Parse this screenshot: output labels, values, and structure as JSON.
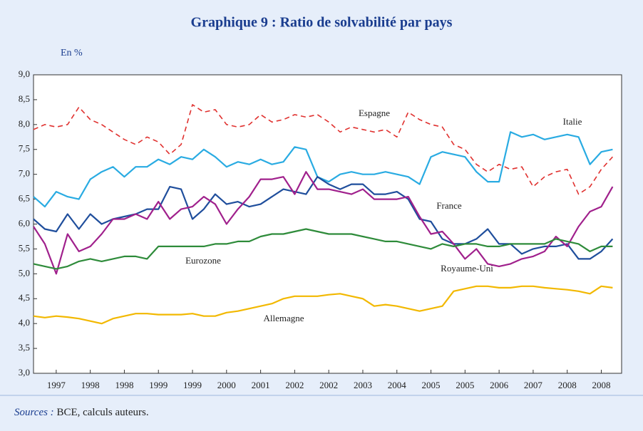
{
  "chart_data": {
    "type": "line",
    "title": "Graphique 9 : Ratio de solvabilité par pays",
    "unit_label": "En %",
    "source": {
      "label": "Sources :",
      "text": "BCE, calculs auteurs."
    },
    "categories": [
      null,
      null,
      "1997",
      null,
      null,
      "1998",
      null,
      null,
      "1998",
      null,
      null,
      "1999",
      null,
      null,
      "1999",
      null,
      null,
      "2000",
      null,
      null,
      "2001",
      null,
      null,
      "2002",
      null,
      null,
      "2002",
      null,
      null,
      "2003",
      null,
      null,
      "2004",
      null,
      null,
      "2005",
      null,
      null,
      "2005",
      null,
      null,
      "2006",
      null,
      null,
      "2007",
      null,
      null,
      "2008",
      null,
      null,
      "2008",
      null
    ],
    "series": [
      {
        "name": "Espagne",
        "color": "#e0312f",
        "line_style": "dashed",
        "values": [
          7.9,
          8.0,
          7.95,
          8.0,
          8.35,
          8.1,
          8.0,
          7.85,
          7.7,
          7.6,
          7.75,
          7.65,
          7.4,
          7.6,
          8.4,
          8.25,
          8.3,
          8.0,
          7.95,
          8.0,
          8.2,
          8.05,
          8.1,
          8.2,
          8.15,
          8.2,
          8.05,
          7.85,
          7.95,
          7.9,
          7.85,
          7.9,
          7.75,
          8.25,
          8.1,
          8.0,
          7.95,
          7.6,
          7.5,
          7.2,
          7.05,
          7.2,
          7.1,
          7.15,
          6.75,
          6.95,
          7.05,
          7.1,
          6.6,
          6.75,
          7.1,
          7.35
        ]
      },
      {
        "name": "Italie",
        "color": "#29abe2",
        "line_style": "solid",
        "values": [
          6.55,
          6.35,
          6.65,
          6.55,
          6.5,
          6.9,
          7.05,
          7.15,
          6.95,
          7.15,
          7.15,
          7.3,
          7.2,
          7.35,
          7.3,
          7.5,
          7.35,
          7.15,
          7.25,
          7.2,
          7.3,
          7.2,
          7.25,
          7.55,
          7.5,
          6.95,
          6.85,
          7.0,
          7.05,
          7.0,
          7.0,
          7.05,
          7.0,
          6.95,
          6.8,
          7.35,
          7.45,
          7.4,
          7.35,
          7.05,
          6.85,
          6.85,
          7.85,
          7.75,
          7.8,
          7.7,
          7.75,
          7.8,
          7.75,
          7.2,
          7.45,
          7.5
        ]
      },
      {
        "name": "France",
        "color": "#1f4e9c",
        "line_style": "solid",
        "values": [
          6.1,
          5.9,
          5.85,
          6.2,
          5.9,
          6.2,
          6.0,
          6.1,
          6.15,
          6.2,
          6.3,
          6.3,
          6.75,
          6.7,
          6.1,
          6.3,
          6.6,
          6.4,
          6.45,
          6.35,
          6.4,
          6.55,
          6.7,
          6.65,
          6.6,
          6.95,
          6.8,
          6.7,
          6.8,
          6.8,
          6.6,
          6.6,
          6.65,
          6.5,
          6.1,
          6.05,
          5.7,
          5.6,
          5.6,
          5.7,
          5.9,
          5.6,
          5.6,
          5.4,
          5.5,
          5.55,
          5.55,
          5.6,
          5.3,
          5.3,
          5.45,
          5.7
        ]
      },
      {
        "name": "Royaume-Uni",
        "color": "#a0208c",
        "line_style": "solid",
        "values": [
          5.95,
          5.6,
          5.0,
          5.8,
          5.45,
          5.55,
          5.8,
          6.1,
          6.1,
          6.2,
          6.1,
          6.45,
          6.1,
          6.3,
          6.35,
          6.55,
          6.4,
          6.0,
          6.3,
          6.55,
          6.9,
          6.9,
          6.95,
          6.6,
          7.05,
          6.7,
          6.7,
          6.65,
          6.6,
          6.7,
          6.5,
          6.5,
          6.5,
          6.55,
          6.15,
          5.8,
          5.85,
          5.6,
          5.3,
          5.5,
          5.2,
          5.15,
          5.2,
          5.3,
          5.35,
          5.45,
          5.75,
          5.55,
          5.95,
          6.25,
          6.35,
          6.75
        ]
      },
      {
        "name": "Eurozone",
        "color": "#2e8b3a",
        "line_style": "solid",
        "values": [
          5.2,
          5.15,
          5.1,
          5.15,
          5.25,
          5.3,
          5.25,
          5.3,
          5.35,
          5.35,
          5.3,
          5.55,
          5.55,
          5.55,
          5.55,
          5.55,
          5.6,
          5.6,
          5.65,
          5.65,
          5.75,
          5.8,
          5.8,
          5.85,
          5.9,
          5.85,
          5.8,
          5.8,
          5.8,
          5.75,
          5.7,
          5.65,
          5.65,
          5.6,
          5.55,
          5.5,
          5.6,
          5.55,
          5.6,
          5.6,
          5.55,
          5.55,
          5.6,
          5.6,
          5.6,
          5.6,
          5.7,
          5.65,
          5.6,
          5.45,
          5.55,
          5.55
        ]
      },
      {
        "name": "Allemagne",
        "color": "#f2b800",
        "line_style": "solid",
        "values": [
          4.15,
          4.12,
          4.15,
          4.13,
          4.1,
          4.05,
          4.0,
          4.1,
          4.15,
          4.2,
          4.2,
          4.18,
          4.18,
          4.18,
          4.2,
          4.15,
          4.15,
          4.22,
          4.25,
          4.3,
          4.35,
          4.4,
          4.5,
          4.55,
          4.55,
          4.55,
          4.58,
          4.6,
          4.55,
          4.5,
          4.35,
          4.38,
          4.35,
          4.3,
          4.25,
          4.3,
          4.35,
          4.65,
          4.7,
          4.75,
          4.75,
          4.72,
          4.72,
          4.75,
          4.75,
          4.72,
          4.7,
          4.68,
          4.65,
          4.6,
          4.75,
          4.72
        ]
      }
    ],
    "ylim": [
      3.0,
      9.0
    ],
    "yticks": [
      {
        "value": 3.0,
        "label": "3,0"
      },
      {
        "value": 3.5,
        "label": "3,5"
      },
      {
        "value": 4.0,
        "label": "4,0"
      },
      {
        "value": 4.5,
        "label": "4,5"
      },
      {
        "value": 5.0,
        "label": "5,0"
      },
      {
        "value": 5.5,
        "label": "5,5"
      },
      {
        "value": 6.0,
        "label": "6,0"
      },
      {
        "value": 6.5,
        "label": "6,5"
      },
      {
        "value": 7.0,
        "label": "7,0"
      },
      {
        "value": 7.5,
        "label": "7,5"
      },
      {
        "value": 8.0,
        "label": "8,0"
      },
      {
        "value": 8.5,
        "label": "8,5"
      },
      {
        "value": 9.0,
        "label": "9,0"
      }
    ],
    "grid": false,
    "legend": "inline"
  }
}
